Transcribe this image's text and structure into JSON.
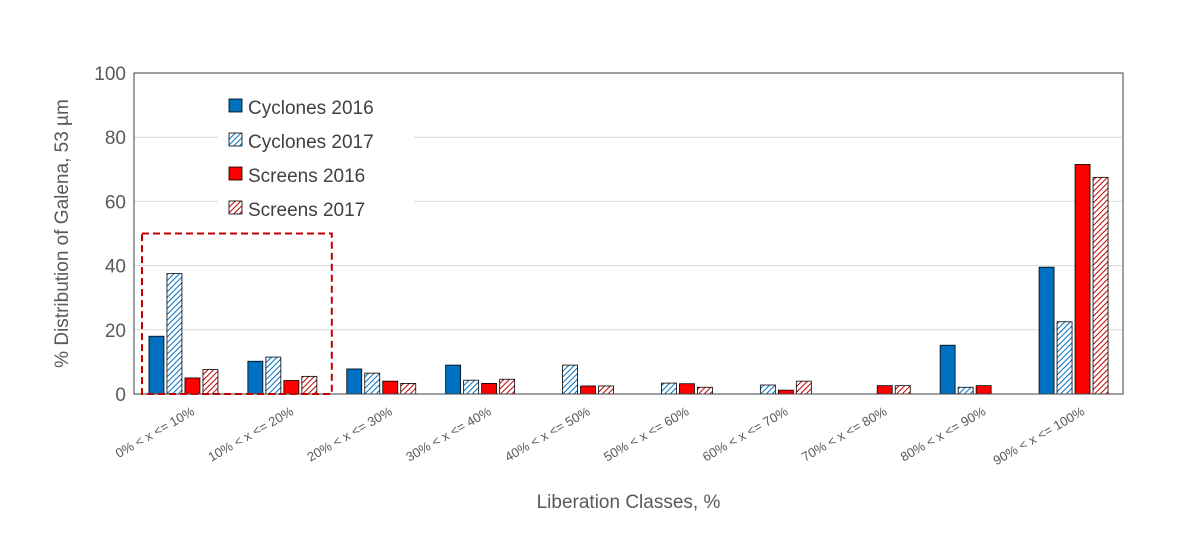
{
  "chart_data": {
    "type": "bar",
    "title": "",
    "xlabel": "Liberation Classes, %",
    "ylabel": "% Distribution of Galena, 53 µm",
    "ylim": [
      0,
      100
    ],
    "yticks": [
      0,
      20,
      40,
      60,
      80,
      100
    ],
    "grid": true,
    "legend_position": "top-left",
    "categories": [
      "0% < x <= 10%",
      "10% < x <= 20%",
      "20% < x <= 30%",
      "30% < x <= 40%",
      "40% < x <= 50%",
      "50% < x <= 60%",
      "60% < x <= 70%",
      "70% < x <= 80%",
      "80% < x <= 90%",
      "90% < x <= 100%"
    ],
    "series": [
      {
        "name": "Cyclones 2016",
        "color": "#0070c0",
        "pattern": "solid",
        "values": [
          18.0,
          10.2,
          7.8,
          9.0,
          0,
          0,
          0,
          0,
          15.2,
          39.5
        ]
      },
      {
        "name": "Cyclones 2017",
        "color": "#0070c0",
        "pattern": "hatch",
        "values": [
          37.5,
          11.5,
          6.5,
          4.3,
          9.0,
          3.4,
          2.8,
          0,
          2.1,
          22.5
        ]
      },
      {
        "name": "Screens 2016",
        "color": "#ff0000",
        "pattern": "solid",
        "values": [
          5.0,
          4.2,
          4.0,
          3.3,
          2.5,
          3.2,
          1.2,
          2.6,
          2.6,
          71.5
        ]
      },
      {
        "name": "Screens 2017",
        "color": "#c00000",
        "pattern": "hatch",
        "values": [
          7.6,
          5.5,
          3.3,
          4.6,
          2.5,
          2.1,
          4.0,
          2.6,
          0,
          67.5
        ]
      }
    ],
    "highlight": {
      "from_category": 0,
      "to_category": 1,
      "ymax": 50,
      "color": "#c00000"
    }
  }
}
